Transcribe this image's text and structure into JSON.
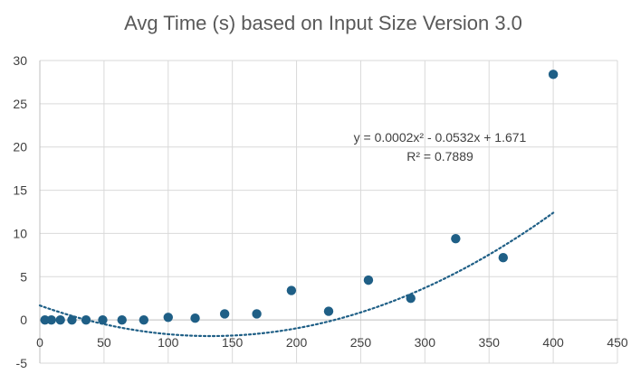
{
  "chart_data": {
    "type": "scatter",
    "title": "Avg Time (s) based on Input Size Version 3.0",
    "xlim": [
      0,
      450
    ],
    "ylim": [
      -5,
      30
    ],
    "xticks": [
      0,
      50,
      100,
      150,
      200,
      250,
      300,
      350,
      400,
      450
    ],
    "yticks": [
      -5,
      0,
      5,
      10,
      15,
      20,
      25,
      30
    ],
    "grid": true,
    "series": [
      {
        "x": [
          4,
          9,
          16,
          25,
          36,
          49,
          64,
          81,
          100,
          121,
          144,
          169,
          196,
          225,
          256,
          289,
          324,
          361,
          400
        ],
        "y": [
          0.0,
          0.0,
          0.0,
          0.0,
          0.0,
          0.0,
          0.0,
          0.0,
          0.3,
          0.2,
          0.7,
          0.7,
          3.4,
          1.0,
          4.6,
          2.5,
          9.4,
          7.2,
          28.4
        ],
        "color": "#1f5f86"
      }
    ],
    "trendline": {
      "type": "polynomial",
      "coefficients": [
        0.0002,
        -0.0532,
        1.671
      ],
      "x_range": [
        0,
        400
      ],
      "color": "#1f5f86",
      "style": "dotted",
      "equation_label": "y = 0.0002x² - 0.0532x + 1.671",
      "r2_label": "R² = 0.7889"
    }
  }
}
